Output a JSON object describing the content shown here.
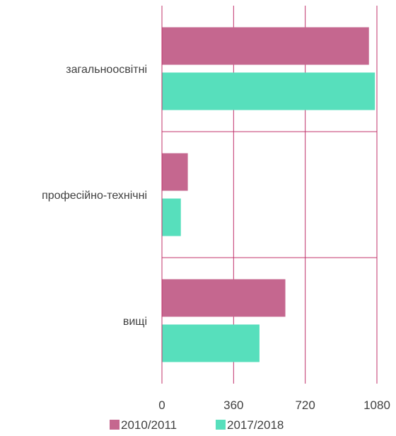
{
  "chart_data": {
    "type": "bar",
    "orientation": "horizontal",
    "categories": [
      "загальноосвітні",
      "професійно-технічні",
      "вищі"
    ],
    "series": [
      {
        "name": "2010/2011",
        "color": "#c5678f",
        "values": [
          1040,
          130,
          620
        ]
      },
      {
        "name": "2017/2018",
        "color": "#57dfbc",
        "values": [
          1070,
          95,
          490
        ]
      }
    ],
    "xlim": [
      0,
      1080
    ],
    "xticks": [
      0,
      360,
      720,
      1080
    ],
    "xtick_labels": [
      "0",
      "360",
      "720",
      "1080"
    ],
    "grid": true,
    "grid_color": "#c0306a",
    "legend": "bottom"
  }
}
